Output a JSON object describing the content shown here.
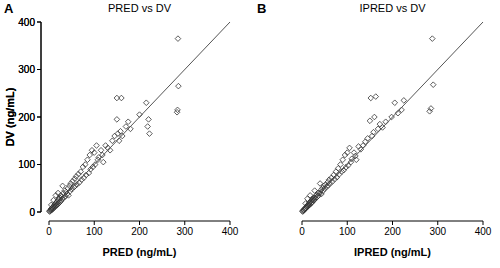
{
  "chart_data": [
    {
      "type": "scatter",
      "panel": "A",
      "title": "PRED vs DV",
      "x_label": "PRED (ng/mL)",
      "y_label": "DV (ng/mL)",
      "xlim": [
        0,
        400
      ],
      "ylim": [
        0,
        400
      ],
      "xticks": [
        0,
        100,
        200,
        300,
        400
      ],
      "yticks": [
        0,
        100,
        200,
        300,
        400
      ],
      "series": [
        {
          "type": "scatter",
          "marker": "diamond",
          "color": "#333333",
          "x": [
            1,
            2,
            3,
            4,
            5,
            6,
            7,
            8,
            9,
            10,
            11,
            12,
            13,
            14,
            15,
            16,
            17,
            18,
            19,
            20,
            21,
            22,
            23,
            24,
            25,
            26,
            27,
            28,
            30,
            32,
            33,
            35,
            36,
            38,
            40,
            42,
            43,
            45,
            47,
            48,
            50,
            52,
            55,
            57,
            58,
            60,
            62,
            65,
            67,
            70,
            72,
            75,
            77,
            80,
            82,
            85,
            88,
            90,
            92,
            95,
            97,
            100,
            102,
            105,
            108,
            110,
            115,
            118,
            120,
            125,
            130,
            135,
            140,
            145,
            150,
            150,
            152,
            155,
            158,
            160,
            162,
            170,
            175,
            180,
            200,
            215,
            218,
            220,
            222,
            285,
            286,
            284,
            283,
            10,
            5,
            15,
            30,
            20
          ],
          "values": [
            1,
            3,
            2,
            6,
            4,
            8,
            5,
            10,
            7,
            12,
            9,
            15,
            11,
            18,
            13,
            20,
            14,
            22,
            16,
            25,
            18,
            28,
            20,
            30,
            22,
            35,
            24,
            32,
            28,
            40,
            30,
            45,
            33,
            42,
            38,
            50,
            35,
            55,
            44,
            60,
            48,
            65,
            52,
            70,
            55,
            75,
            58,
            80,
            62,
            85,
            68,
            95,
            72,
            100,
            78,
            110,
            82,
            120,
            90,
            130,
            95,
            125,
            100,
            140,
            110,
            115,
            130,
            120,
            105,
            140,
            135,
            130,
            150,
            160,
            195,
            240,
            165,
            150,
            170,
            240,
            160,
            180,
            190,
            175,
            205,
            230,
            180,
            195,
            165,
            365,
            265,
            215,
            210,
            25,
            15,
            35,
            55,
            40
          ]
        },
        {
          "type": "line",
          "line_style": "solid",
          "color": "#555555",
          "x": [
            0,
            400
          ],
          "values": [
            0,
            400
          ]
        }
      ]
    },
    {
      "type": "scatter",
      "panel": "B",
      "title": "IPRED vs DV",
      "x_label": "IPRED (ng/mL)",
      "y_label": "DV (ng/mL)",
      "xlim": [
        0,
        400
      ],
      "ylim": [
        0,
        400
      ],
      "xticks": [
        0,
        100,
        200,
        300,
        400
      ],
      "yticks": [
        0,
        100,
        200,
        300,
        400
      ],
      "series": [
        {
          "type": "scatter",
          "marker": "diamond",
          "color": "#333333",
          "x": [
            1,
            2,
            3,
            4,
            5,
            6,
            7,
            8,
            9,
            10,
            11,
            12,
            13,
            14,
            15,
            16,
            17,
            18,
            19,
            20,
            21,
            22,
            23,
            24,
            25,
            26,
            27,
            28,
            30,
            32,
            33,
            35,
            36,
            38,
            40,
            42,
            43,
            45,
            47,
            48,
            50,
            52,
            55,
            57,
            58,
            60,
            62,
            65,
            67,
            70,
            72,
            75,
            77,
            80,
            82,
            85,
            88,
            90,
            92,
            95,
            97,
            100,
            102,
            105,
            108,
            110,
            115,
            118,
            120,
            125,
            130,
            135,
            140,
            145,
            150,
            152,
            155,
            158,
            160,
            163,
            168,
            172,
            178,
            185,
            198,
            205,
            212,
            220,
            225,
            288,
            290,
            285,
            282,
            8,
            12,
            18,
            28,
            40
          ],
          "values": [
            1,
            3,
            2,
            5,
            4,
            7,
            6,
            9,
            8,
            12,
            10,
            14,
            12,
            16,
            14,
            19,
            15,
            21,
            18,
            23,
            19,
            26,
            21,
            28,
            24,
            30,
            25,
            31,
            29,
            36,
            31,
            40,
            34,
            40,
            39,
            46,
            38,
            50,
            45,
            55,
            49,
            58,
            53,
            63,
            56,
            68,
            60,
            72,
            64,
            78,
            69,
            85,
            73,
            92,
            79,
            100,
            85,
            110,
            88,
            120,
            94,
            125,
            98,
            135,
            105,
            112,
            125,
            118,
            110,
            138,
            132,
            140,
            148,
            155,
            192,
            240,
            160,
            168,
            200,
            243,
            175,
            185,
            178,
            190,
            200,
            230,
            208,
            215,
            235,
            365,
            268,
            218,
            212,
            18,
            28,
            35,
            45,
            60
          ]
        },
        {
          "type": "line",
          "line_style": "solid",
          "color": "#555555",
          "x": [
            0,
            400
          ],
          "values": [
            0,
            400
          ]
        }
      ]
    }
  ]
}
